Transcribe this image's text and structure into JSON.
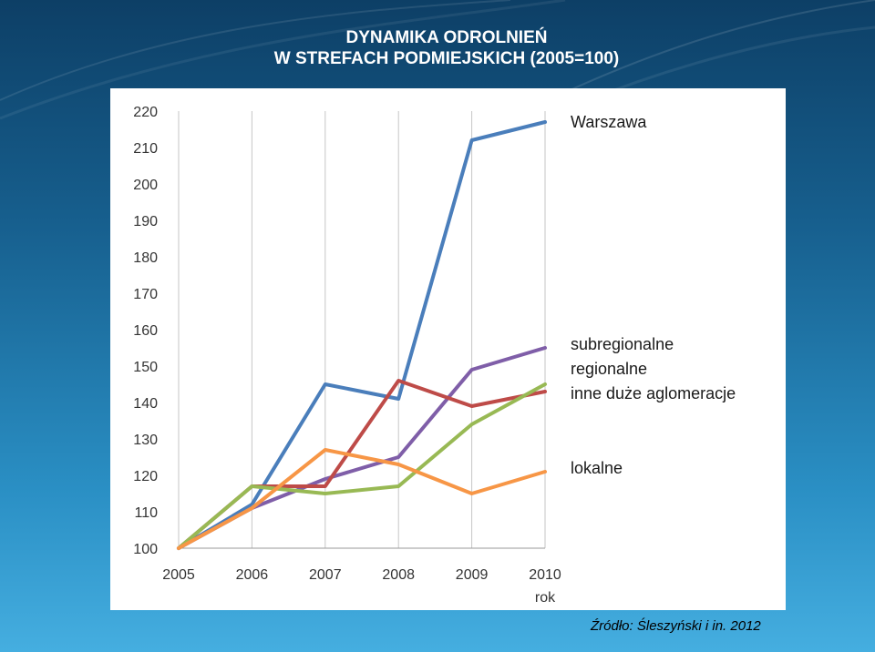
{
  "slide": {
    "title_line1": "DYNAMIKA ODROLNIEŃ",
    "title_line2": "W STREFACH PODMIEJSKICH (2005=100)",
    "source": "Źródło: Śleszyński  i in. 2012"
  },
  "chart_data": {
    "type": "line",
    "x": [
      "2005",
      "2006",
      "2007",
      "2008",
      "2009",
      "2010"
    ],
    "xlabel": "rok",
    "ylabel": "",
    "ylim": [
      100,
      220
    ],
    "yticks": [
      100,
      110,
      120,
      130,
      140,
      150,
      160,
      170,
      180,
      190,
      200,
      210,
      220
    ],
    "grid": "vertical",
    "legend": "right, labels next to line ends",
    "series": [
      {
        "name": "Warszawa",
        "color": "#4a7ebb",
        "values": [
          100,
          112,
          145,
          141,
          212,
          217
        ]
      },
      {
        "name": "subregionalne",
        "color": "#7f5ea8",
        "values": [
          100,
          111,
          119,
          125,
          149,
          155
        ]
      },
      {
        "name": "regionalne",
        "color": "#be4b48",
        "values": [
          100,
          117,
          117,
          146,
          139,
          143
        ]
      },
      {
        "name": "inne duże aglomeracje",
        "color": "#98b954",
        "values": [
          100,
          117,
          115,
          117,
          134,
          145
        ]
      },
      {
        "name": "lokalne",
        "color": "#f79646",
        "values": [
          100,
          111,
          127,
          123,
          115,
          121
        ]
      }
    ]
  }
}
